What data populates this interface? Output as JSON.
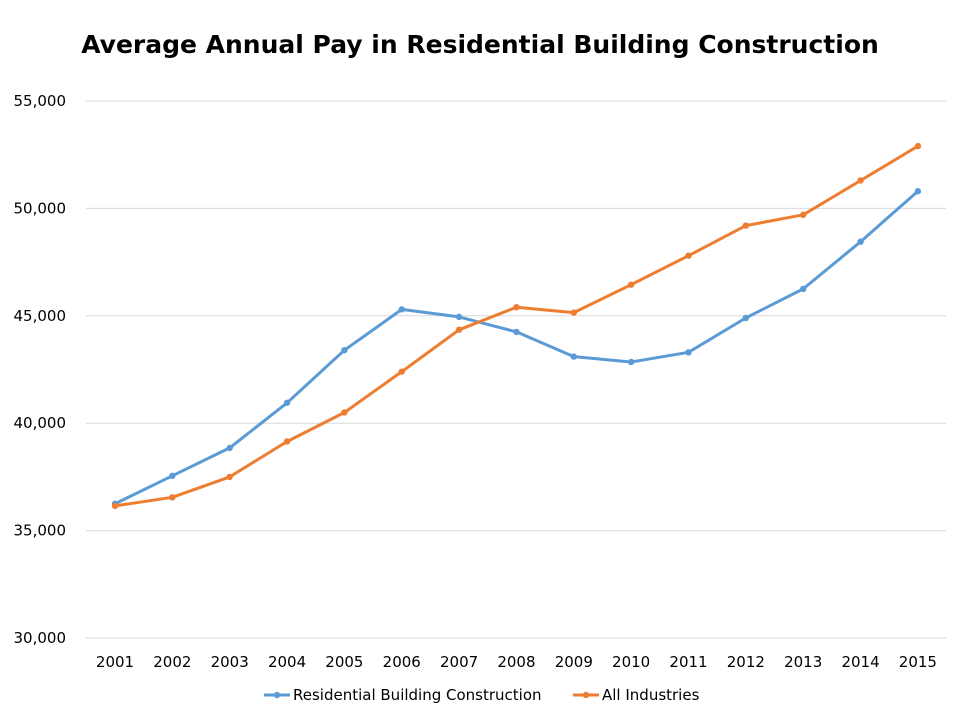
{
  "chart_data": {
    "type": "line",
    "title": "Average Annual Pay in Residential Building Construction",
    "xlabel": "",
    "ylabel": "",
    "categories": [
      "2001",
      "2002",
      "2003",
      "2004",
      "2005",
      "2006",
      "2007",
      "2008",
      "2009",
      "2010",
      "2011",
      "2012",
      "2013",
      "2014",
      "2015"
    ],
    "ylim": [
      30000,
      55000
    ],
    "yticks": [
      30000,
      35000,
      40000,
      45000,
      50000,
      55000
    ],
    "ytick_labels": [
      "30,000",
      "35,000",
      "40,000",
      "45,000",
      "50,000",
      "55,000"
    ],
    "grid": true,
    "legend_position": "bottom",
    "series": [
      {
        "name": "Residential Building Construction",
        "color": "#5b9bd5",
        "values": [
          36250,
          37550,
          38850,
          40950,
          43400,
          45300,
          44950,
          44250,
          43100,
          42850,
          43300,
          44900,
          46250,
          48450,
          50800
        ]
      },
      {
        "name": "All Industries",
        "color": "#ed7d31",
        "values": [
          36150,
          36550,
          37500,
          39150,
          40500,
          42400,
          44350,
          45400,
          45150,
          46450,
          47800,
          49200,
          49700,
          51300,
          52900
        ]
      }
    ]
  }
}
